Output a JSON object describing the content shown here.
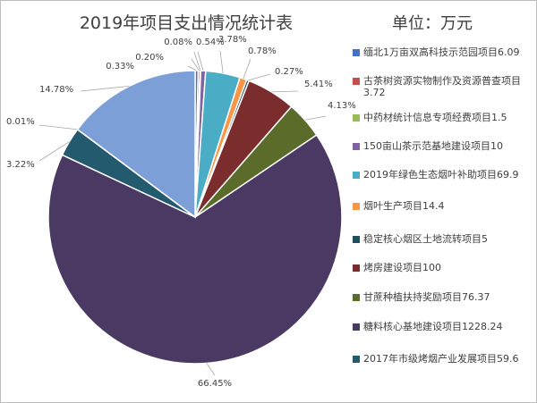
{
  "title": "2019年项目支出情况统计表",
  "unit_label": "单位：万元",
  "colors": [
    "#4472c4",
    "#c0504d",
    "#9bbb59",
    "#8064a2",
    "#4bacc6",
    "#f79646",
    "#1f4e5f",
    "#7b2c2c",
    "#5a6b2a",
    "#4a3a63",
    "#245a6e",
    "#7b9fd6"
  ],
  "chart_data": {
    "type": "pie",
    "title": "2019年项目支出情况统计表",
    "unit": "单位：万元",
    "legend_position": "right",
    "slices": [
      {
        "name": "缅北1万亩双高科技示范园项目",
        "value": 6.09,
        "percent": "0.33%",
        "color": "#4472c4",
        "legend_label": "缅北1万亩双高科技示范园项目6.09"
      },
      {
        "name": "古茶树资源实物制作及资源普查项目",
        "value": 3.72,
        "percent": "0.20%",
        "color": "#c0504d",
        "legend_label": "古茶树资源实物制作及资源普查项目3.72"
      },
      {
        "name": "中药材统计信息专项经费项目",
        "value": 1.5,
        "percent": "0.08%",
        "color": "#9bbb59",
        "legend_label": "中药材统计信息专项经费项目1.5"
      },
      {
        "name": "150亩山茶示范基地建设项目",
        "value": 10,
        "percent": "0.54%",
        "color": "#8064a2",
        "legend_label": "150亩山茶示范基地建设项目10"
      },
      {
        "name": "2019年绿色生态烟叶补助项目",
        "value": 69.9,
        "percent": "3.78%",
        "color": "#4bacc6",
        "legend_label": "2019年绿色生态烟叶补助项目69.9"
      },
      {
        "name": "烟叶生产项目",
        "value": 14.4,
        "percent": "0.78%",
        "color": "#f79646",
        "legend_label": "烟叶生产项目14.4"
      },
      {
        "name": "稳定核心烟区土地流转项目",
        "value": 5,
        "percent": "0.27%",
        "color": "#1f4e5f",
        "legend_label": "稳定核心烟区土地流转项目5"
      },
      {
        "name": "烤房建设项目",
        "value": 100,
        "percent": "5.41%",
        "color": "#7b2c2c",
        "legend_label": "烤房建设项目100"
      },
      {
        "name": "甘蔗种植扶持奖励项目",
        "value": 76.37,
        "percent": "4.13%",
        "color": "#5a6b2a",
        "legend_label": "甘蔗种植扶持奖励项目76.37"
      },
      {
        "name": "糖料核心基地建设项目",
        "value": 1228.24,
        "percent": "66.45%",
        "color": "#4a3a63",
        "legend_label": "糖料核心基地建设项目1228.24"
      },
      {
        "name": "2017年市级烤烟产业发展项目",
        "value": 59.6,
        "percent": "3.22%",
        "color": "#245a6e",
        "legend_label": "2017年市级烤烟产业发展项目59.6"
      },
      {
        "name": "",
        "value": 0.2,
        "percent": "0.01%",
        "color": "#4e6fa8",
        "legend_label": ""
      },
      {
        "name": "",
        "value": 273.2,
        "percent": "14.78%",
        "color": "#7b9fd6",
        "legend_label": ""
      }
    ]
  }
}
